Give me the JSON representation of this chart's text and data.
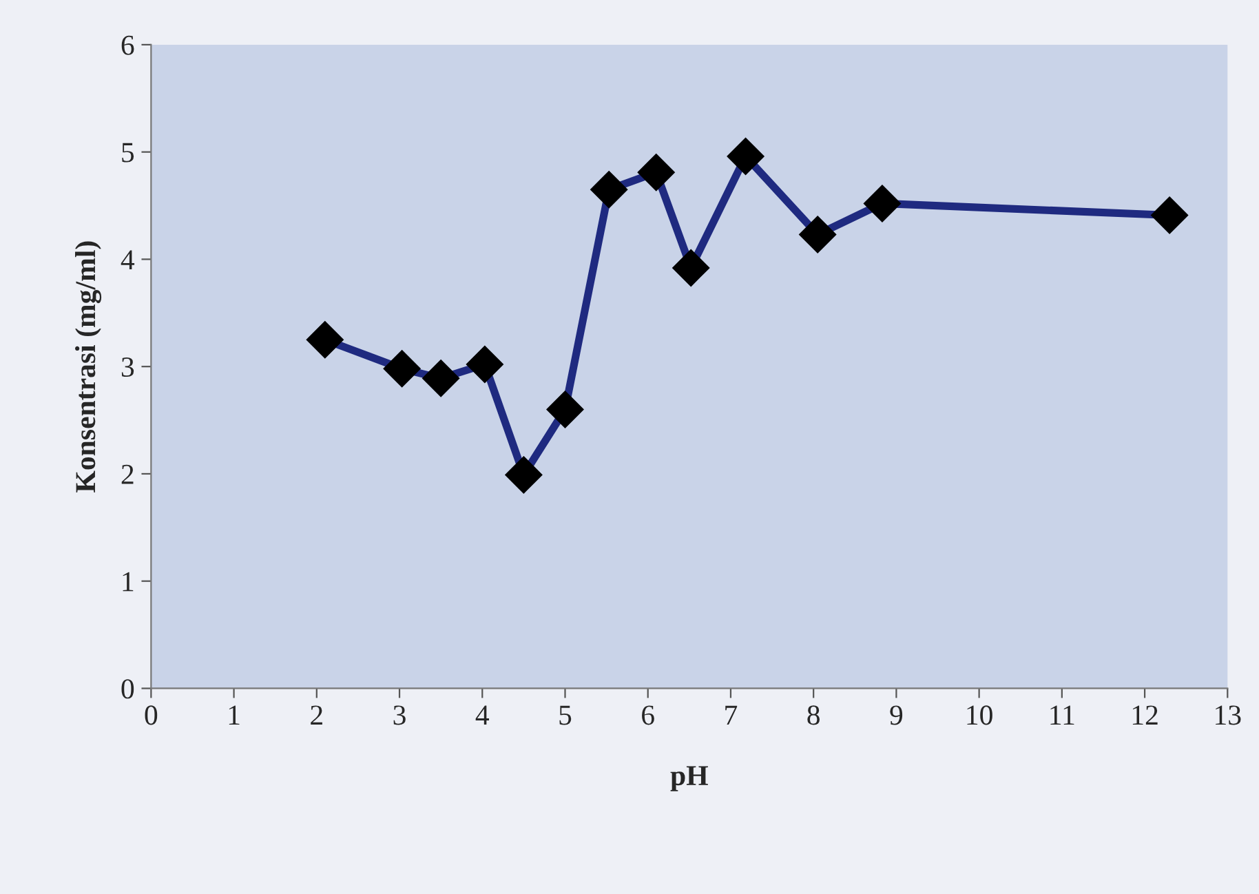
{
  "chart_data": {
    "type": "line",
    "xlabel": "pH",
    "ylabel": "Konsentrasi (mg/ml)",
    "x": [
      2.1,
      3.03,
      3.5,
      4.03,
      4.5,
      5.0,
      5.53,
      6.1,
      6.52,
      7.18,
      8.05,
      8.83,
      12.3
    ],
    "series": [
      {
        "color": "#1f2a80",
        "values": [
          3.25,
          2.98,
          2.89,
          3.02,
          1.99,
          2.6,
          4.65,
          4.81,
          3.92,
          4.96,
          4.23,
          4.52,
          4.41
        ]
      }
    ],
    "xlim": [
      0,
      13
    ],
    "xticks": [
      0,
      1,
      2,
      3,
      4,
      5,
      6,
      7,
      8,
      9,
      10,
      11,
      12,
      13
    ],
    "ylim": [
      0,
      6
    ],
    "yticks": [
      0,
      1,
      2,
      3,
      4,
      5,
      6
    ],
    "marker": "diamond",
    "line_style": "solid"
  }
}
